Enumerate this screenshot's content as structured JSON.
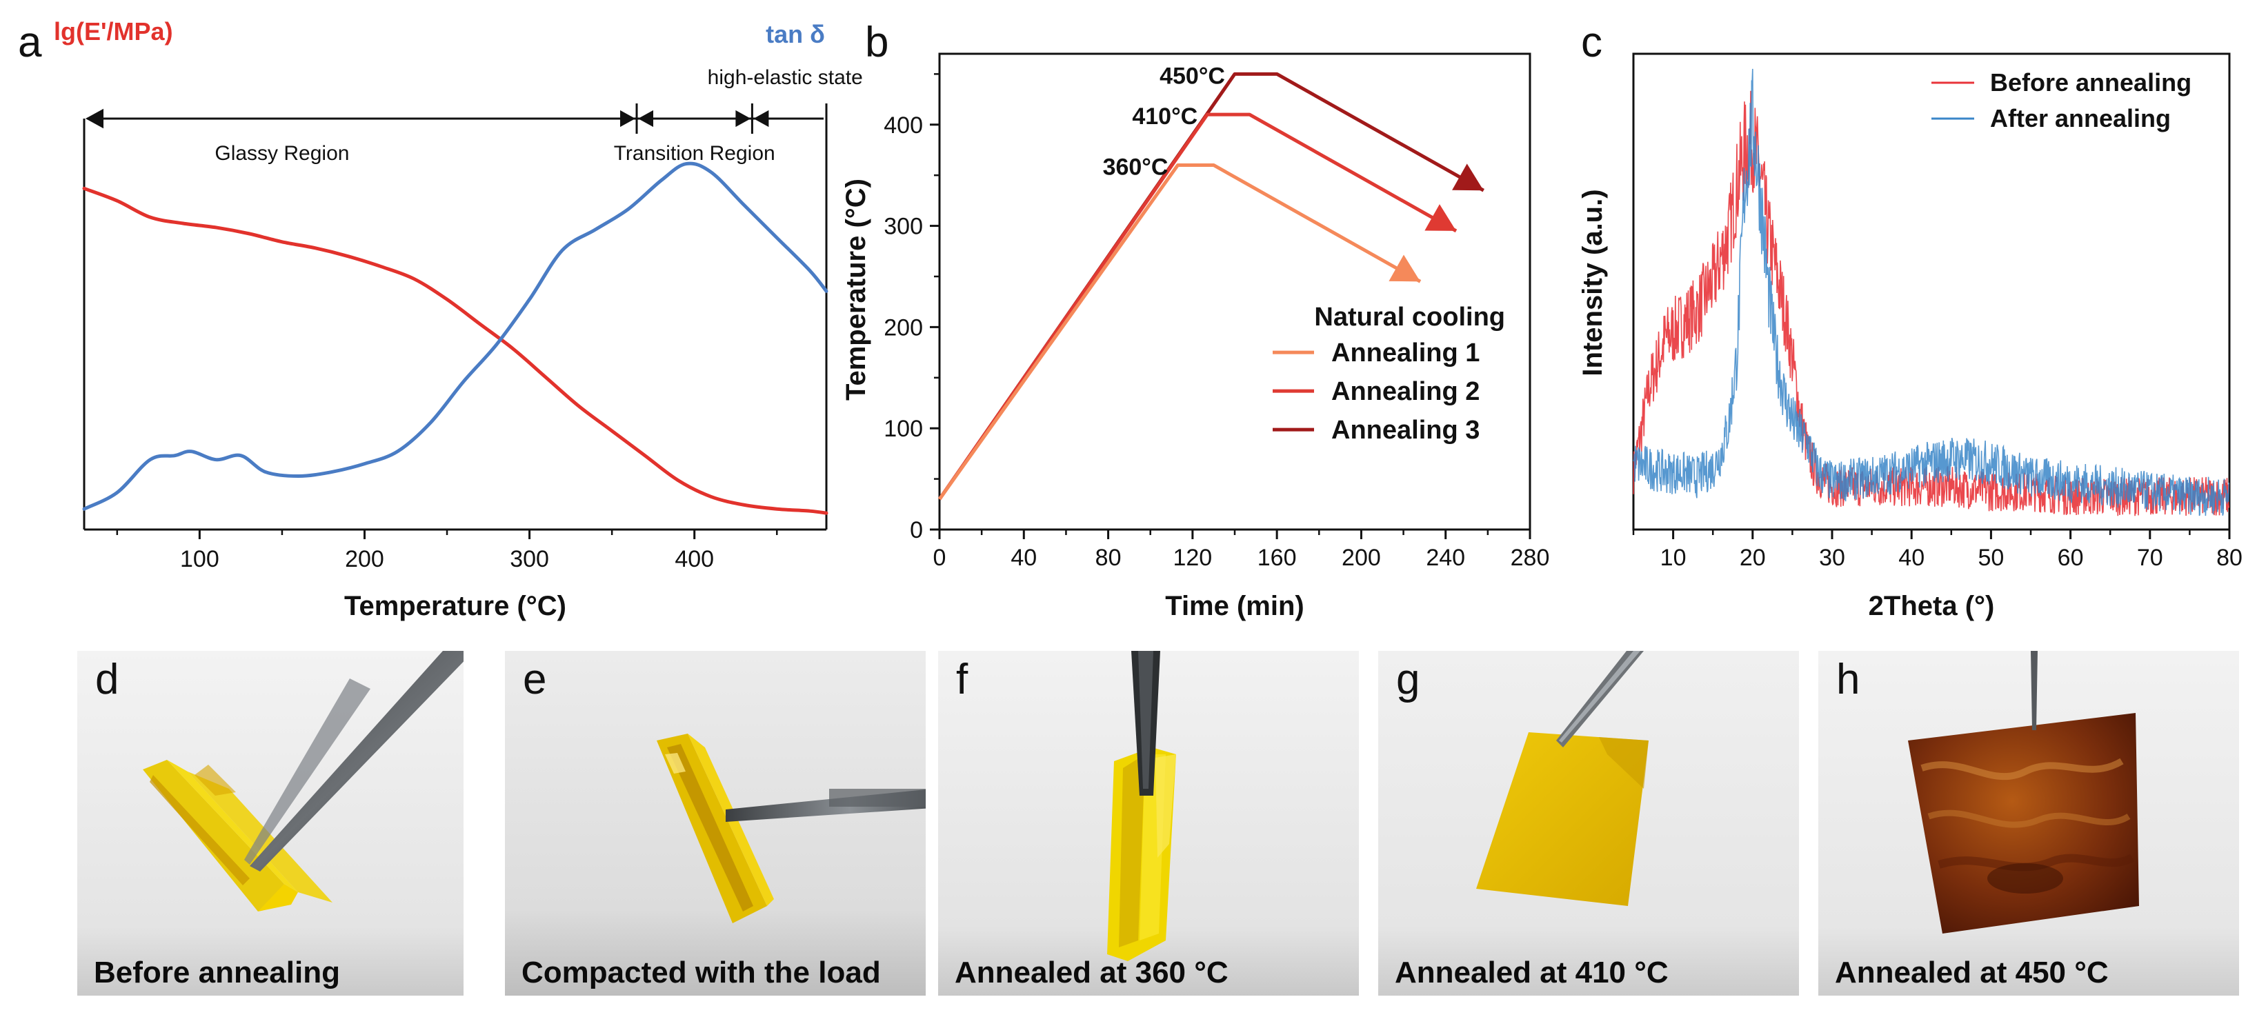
{
  "colors": {
    "modulus": "#e2322c",
    "tan_delta": "#4a7cc4",
    "annealing1": "#f5895a",
    "annealing2": "#df3a32",
    "annealing3": "#a11a1a",
    "xrd_before": "#e8343a",
    "xrd_after": "#3a86c8",
    "axis": "#111111"
  },
  "chart_data": [
    {
      "panel": "a",
      "type": "line",
      "xlabel": "Temperature (°C)",
      "ylabel_left": "lg(E'/MPa)",
      "ylabel_right": "tan δ",
      "xlim": [
        30,
        480
      ],
      "ylim": [
        0,
        1
      ],
      "x_ticks": [
        100,
        200,
        300,
        400
      ],
      "regions": [
        {
          "label": "Glassy Region",
          "from": 30,
          "to": 365
        },
        {
          "label": "Transition Region",
          "from": 365,
          "to": 435
        },
        {
          "label": "high-elastic state",
          "from": 435,
          "to": 480
        }
      ],
      "series": [
        {
          "name": "lg(E'/MPa)",
          "x": [
            30,
            50,
            70,
            90,
            110,
            130,
            150,
            170,
            190,
            210,
            230,
            250,
            270,
            290,
            310,
            330,
            350,
            370,
            390,
            410,
            430,
            450,
            470,
            480
          ],
          "y": [
            0.83,
            0.8,
            0.76,
            0.745,
            0.735,
            0.72,
            0.7,
            0.685,
            0.665,
            0.64,
            0.61,
            0.56,
            0.5,
            0.44,
            0.37,
            0.3,
            0.24,
            0.18,
            0.12,
            0.08,
            0.06,
            0.05,
            0.045,
            0.04
          ]
        },
        {
          "name": "tan δ",
          "x": [
            30,
            50,
            70,
            85,
            95,
            110,
            125,
            140,
            160,
            180,
            200,
            220,
            240,
            260,
            280,
            300,
            320,
            340,
            360,
            380,
            395,
            410,
            430,
            450,
            470,
            480
          ],
          "y": [
            0.05,
            0.09,
            0.17,
            0.18,
            0.19,
            0.17,
            0.18,
            0.14,
            0.13,
            0.14,
            0.16,
            0.19,
            0.26,
            0.36,
            0.45,
            0.56,
            0.68,
            0.73,
            0.78,
            0.85,
            0.89,
            0.87,
            0.79,
            0.71,
            0.63,
            0.58
          ]
        }
      ]
    },
    {
      "panel": "b",
      "type": "line",
      "xlabel": "Time (min)",
      "ylabel": "Temperature (°C)",
      "xlim": [
        0,
        280
      ],
      "ylim": [
        0,
        470
      ],
      "x_ticks": [
        0,
        40,
        80,
        120,
        160,
        200,
        240,
        280
      ],
      "y_ticks": [
        0,
        100,
        200,
        300,
        400
      ],
      "series": [
        {
          "name": "Annealing 1",
          "peak_label": "360°C",
          "x": [
            0,
            113,
            130,
            228
          ],
          "y": [
            30,
            360,
            360,
            245
          ]
        },
        {
          "name": "Annealing 2",
          "peak_label": "410°C",
          "x": [
            0,
            127,
            147,
            245
          ],
          "y": [
            30,
            410,
            410,
            295
          ]
        },
        {
          "name": "Annealing 3",
          "peak_label": "450°C",
          "x": [
            0,
            140,
            160,
            258
          ],
          "y": [
            30,
            450,
            450,
            335
          ]
        }
      ],
      "annotation": "Natural cooling",
      "legend": [
        "Annealing 1",
        "Annealing 2",
        "Annealing 3"
      ]
    },
    {
      "panel": "c",
      "type": "line",
      "xlabel": "2Theta (°)",
      "ylabel": "Intensity (a.u.)",
      "xlim": [
        5,
        80
      ],
      "ylim": [
        0,
        1
      ],
      "x_ticks": [
        10,
        20,
        30,
        40,
        50,
        60,
        70,
        80
      ],
      "series": [
        {
          "name": "Before annealing",
          "x": [
            5,
            7,
            9,
            11,
            13,
            15,
            17,
            18,
            19,
            20,
            21,
            22,
            23,
            24,
            25,
            26,
            27,
            28,
            29,
            30,
            35,
            40,
            45,
            50,
            55,
            60,
            65,
            70,
            75,
            80
          ],
          "y": [
            0.12,
            0.3,
            0.4,
            0.43,
            0.46,
            0.52,
            0.62,
            0.72,
            0.8,
            0.82,
            0.74,
            0.62,
            0.54,
            0.46,
            0.36,
            0.24,
            0.16,
            0.12,
            0.1,
            0.09,
            0.09,
            0.09,
            0.09,
            0.08,
            0.08,
            0.07,
            0.07,
            0.07,
            0.07,
            0.07
          ]
        },
        {
          "name": "After annealing",
          "x": [
            5,
            7,
            9,
            11,
            13,
            15,
            16,
            17,
            18,
            19,
            20,
            21,
            22,
            23,
            24,
            25,
            26,
            27,
            28,
            29,
            30,
            35,
            40,
            45,
            50,
            55,
            60,
            65,
            70,
            75,
            80
          ],
          "y": [
            0.14,
            0.13,
            0.12,
            0.12,
            0.11,
            0.13,
            0.16,
            0.22,
            0.36,
            0.72,
            0.86,
            0.7,
            0.5,
            0.36,
            0.28,
            0.23,
            0.2,
            0.18,
            0.13,
            0.11,
            0.1,
            0.11,
            0.13,
            0.15,
            0.14,
            0.11,
            0.1,
            0.09,
            0.08,
            0.07,
            0.07
          ]
        }
      ],
      "legend": [
        "Before annealing",
        "After annealing"
      ]
    }
  ],
  "panels": {
    "a": "a",
    "b": "b",
    "c": "c",
    "photos": [
      {
        "letter": "d",
        "caption": "Before annealing"
      },
      {
        "letter": "e",
        "caption": "Compacted with the load"
      },
      {
        "letter": "f",
        "caption": "Annealed at 360 °C"
      },
      {
        "letter": "g",
        "caption": "Annealed at 410 °C"
      },
      {
        "letter": "h",
        "caption": "Annealed at 450 °C"
      }
    ]
  }
}
